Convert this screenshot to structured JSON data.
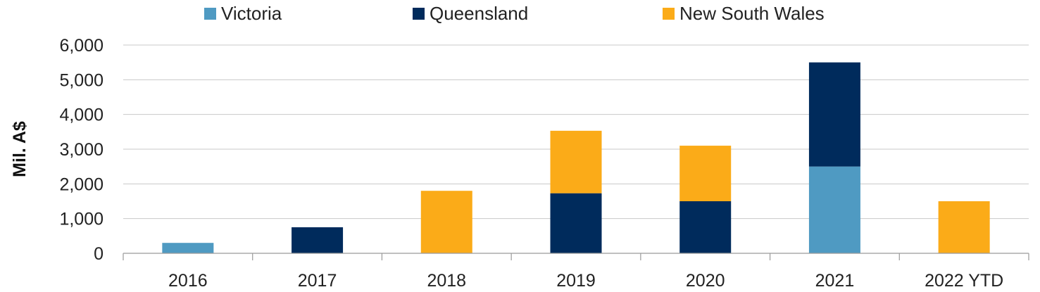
{
  "chart_data": {
    "type": "bar",
    "stacked": true,
    "categories": [
      "2016",
      "2017",
      "2018",
      "2019",
      "2020",
      "2021",
      "2022 YTD"
    ],
    "series": [
      {
        "name": "Victoria",
        "color": "#4f9ac2",
        "values": [
          300,
          0,
          0,
          0,
          0,
          2500,
          0
        ]
      },
      {
        "name": "Queensland",
        "color": "#002b5c",
        "values": [
          0,
          750,
          0,
          1730,
          1500,
          3000,
          0
        ]
      },
      {
        "name": "New South Wales",
        "color": "#fbab18",
        "values": [
          0,
          0,
          1800,
          1800,
          1600,
          0,
          1500
        ]
      }
    ],
    "ylabel": "Mil. A$",
    "ylim": [
      0,
      6000
    ],
    "yticks": [
      0,
      1000,
      2000,
      3000,
      4000,
      5000,
      6000
    ],
    "ytick_labels": [
      "0",
      "1,000",
      "2,000",
      "3,000",
      "4,000",
      "5,000",
      "6,000"
    ],
    "grid": true,
    "legend_position": "top"
  }
}
